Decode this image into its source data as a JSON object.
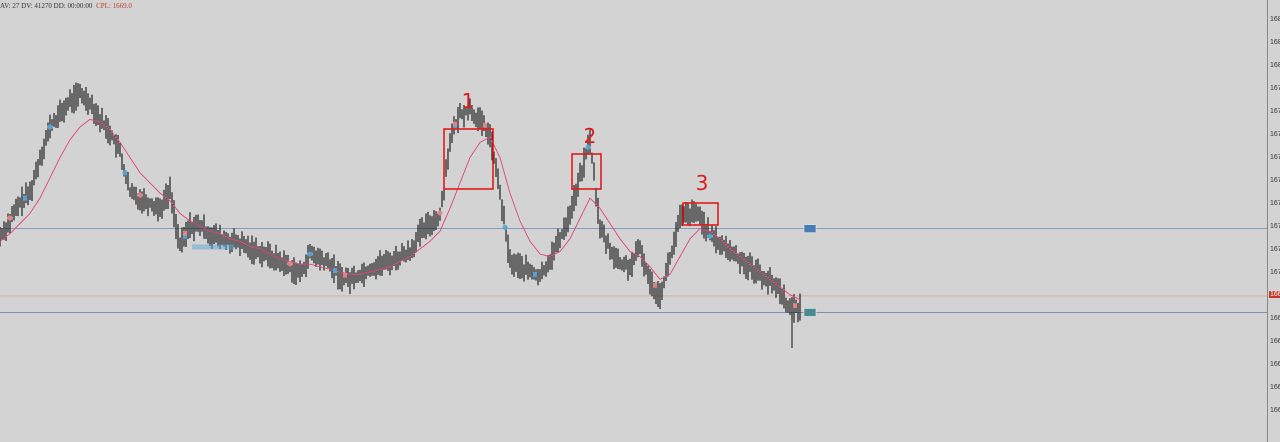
{
  "info": {
    "stats": "AV: 27 DV: 41270 DD: 00:00:00",
    "cpl": "CPL: 1669.0"
  },
  "annotations": [
    "1",
    "2",
    "3"
  ],
  "colors": {
    "background": "#d3d3d3",
    "candle": "#111111",
    "ma_line": "#e0457b",
    "level_line": "#6a89b3",
    "current_line": "#d9a89c",
    "annotation_box": "#e11b1b",
    "marker_blue": "#5aa7d8",
    "marker_red": "#e88a8a",
    "current_badge": "#c0392b",
    "level_badge": "#4a7bb5",
    "level_badge_2": "#4a8c8c"
  },
  "icons": {
    "level-badge": "small-rectangle-tag"
  },
  "chart_data": {
    "type": "line",
    "title": "",
    "xlabel": "",
    "ylabel": "",
    "ylim": [
      1663.6,
      1681
    ],
    "y_tick_labels": [
      "168",
      "168",
      "168",
      "167",
      "167",
      "167",
      "167",
      "167",
      "167",
      "167",
      "167",
      "167",
      "167",
      "166",
      "166",
      "166",
      "166",
      "166"
    ],
    "current_price_label": "166",
    "grid": false,
    "horizontal_levels": [
      1672.0,
      1668.7,
      1669.35
    ],
    "x": [
      0,
      10,
      20,
      30,
      40,
      50,
      60,
      70,
      80,
      90,
      100,
      110,
      120,
      130,
      140,
      150,
      160,
      170,
      180,
      190,
      200,
      210,
      220,
      230,
      240,
      250,
      260,
      270,
      280,
      290,
      300,
      310,
      320,
      330,
      340,
      350,
      360,
      370,
      380,
      390,
      400,
      410,
      420,
      430,
      440,
      450,
      460,
      470,
      480,
      490,
      500,
      510,
      520,
      530,
      540,
      550,
      560,
      570,
      580,
      590,
      600,
      610,
      620,
      630,
      640,
      650,
      660,
      670,
      680,
      690,
      700,
      710,
      720,
      730,
      740,
      750,
      760,
      770,
      780,
      790,
      800
    ],
    "series": [
      {
        "values": [
          1671.7,
          1672.3,
          1673.0,
          1673.4,
          1674.8,
          1676.0,
          1676.5,
          1677.0,
          1677.3,
          1677.0,
          1676.3,
          1675.8,
          1675.0,
          1673.4,
          1673.2,
          1673.0,
          1672.8,
          1673.5,
          1671.3,
          1672.1,
          1672.1,
          1671.8,
          1671.6,
          1671.5,
          1671.4,
          1671.2,
          1671.1,
          1670.9,
          1670.7,
          1670.5,
          1670.2,
          1671.0,
          1670.8,
          1670.6,
          1670.1,
          1670.0,
          1670.2,
          1670.4,
          1670.6,
          1670.7,
          1670.9,
          1671.1,
          1671.8,
          1672.2,
          1672.5,
          1675.5,
          1676.5,
          1676.7,
          1676.2,
          1675.7,
          1673.4,
          1670.7,
          1670.5,
          1670.3,
          1670.1,
          1670.8,
          1671.6,
          1672.6,
          1674.0,
          1675.5,
          1672.0,
          1671.2,
          1670.6,
          1670.5,
          1671.2,
          1669.9,
          1669.4,
          1670.8,
          1672.4,
          1672.6,
          1672.5,
          1671.7,
          1671.4,
          1671.1,
          1670.8,
          1670.5,
          1670.2,
          1669.9,
          1669.6,
          1668.8,
          1668.9
        ]
      },
      {
        "values": [
          1671.5,
          1671.8,
          1672.2,
          1672.6,
          1673.2,
          1674.0,
          1674.8,
          1675.5,
          1676.0,
          1676.3,
          1676.2,
          1675.9,
          1675.4,
          1674.8,
          1674.2,
          1673.8,
          1673.4,
          1673.1,
          1672.6,
          1672.3,
          1672.1,
          1671.9,
          1671.8,
          1671.6,
          1671.5,
          1671.3,
          1671.2,
          1671.0,
          1670.8,
          1670.7,
          1670.6,
          1670.6,
          1670.5,
          1670.4,
          1670.3,
          1670.2,
          1670.2,
          1670.3,
          1670.4,
          1670.5,
          1670.7,
          1670.9,
          1671.2,
          1671.5,
          1671.9,
          1672.8,
          1673.8,
          1674.8,
          1675.4,
          1675.6,
          1674.8,
          1673.4,
          1672.3,
          1671.5,
          1671.0,
          1670.9,
          1671.1,
          1671.6,
          1672.4,
          1673.2,
          1672.8,
          1672.2,
          1671.6,
          1671.1,
          1670.9,
          1670.5,
          1670.0,
          1670.2,
          1670.9,
          1671.6,
          1672.0,
          1671.9,
          1671.6,
          1671.2,
          1670.9,
          1670.6,
          1670.3,
          1670.0,
          1669.7,
          1669.4,
          1669.2
        ]
      }
    ]
  }
}
